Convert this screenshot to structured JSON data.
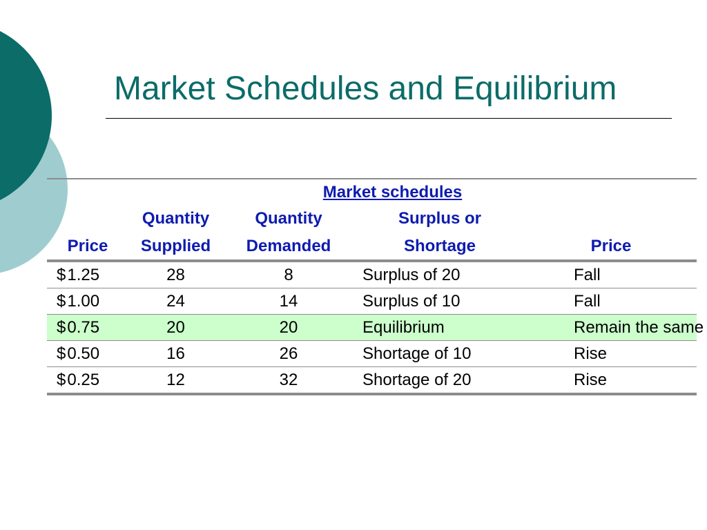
{
  "slide": {
    "title": "Market Schedules and Equilibrium",
    "colors": {
      "title": "#0b6c68",
      "header_text": "#0e1bb0",
      "equilibrium_row": "#ccffcc",
      "circle_dark": "#0b6c68",
      "circle_light": "#9fcdcf"
    }
  },
  "table": {
    "group_header": "Market schedules",
    "headers": {
      "price": "Price",
      "qs_line1": "Quantity",
      "qs_line2": "Supplied",
      "qd_line1": "Quantity",
      "qd_line2": "Demanded",
      "ss_line1": "Surplus or",
      "ss_line2": "Shortage",
      "price_direction": "Price"
    },
    "rows": [
      {
        "currency": "$",
        "price": "1.25",
        "qs": "28",
        "qd": "8",
        "surplus": "Surplus of 20",
        "outcome": "Fall"
      },
      {
        "currency": "$",
        "price": "1.00",
        "qs": "24",
        "qd": "14",
        "surplus": "Surplus of 10",
        "outcome": "Fall"
      },
      {
        "currency": "$",
        "price": "0.75",
        "qs": "20",
        "qd": "20",
        "surplus": "Equilibrium",
        "outcome": "Remain the same",
        "highlighted": true
      },
      {
        "currency": "$",
        "price": "0.50",
        "qs": "16",
        "qd": "26",
        "surplus": "Shortage of 10",
        "outcome": "Rise"
      },
      {
        "currency": "$",
        "price": "0.25",
        "qs": "12",
        "qd": "32",
        "surplus": "Shortage of 20",
        "outcome": "Rise"
      }
    ]
  }
}
